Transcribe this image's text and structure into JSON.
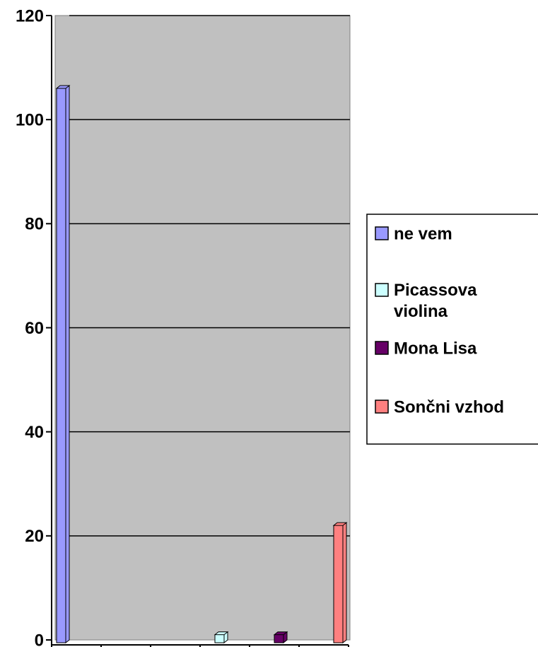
{
  "chart_data": {
    "type": "bar3d",
    "categories": [
      null,
      null,
      null,
      null,
      null,
      null
    ],
    "series": [
      {
        "name": "ne vem",
        "color": "#9999ff",
        "values": [
          106,
          0,
          0,
          0,
          0,
          0
        ]
      },
      {
        "name": "Picassova violina",
        "color": "#ccffff",
        "values": [
          0,
          0,
          0,
          1,
          0,
          0
        ]
      },
      {
        "name": "Mona Lisa",
        "color": "#660066",
        "values": [
          0,
          0,
          0,
          0,
          1,
          0
        ]
      },
      {
        "name": "Sončni vzhod",
        "color": "#ff8080",
        "values": [
          0,
          0,
          0,
          0,
          0,
          22
        ]
      }
    ],
    "ylim": [
      0,
      120
    ],
    "yticks": [
      0,
      20,
      40,
      60,
      80,
      100,
      120
    ],
    "grid": true,
    "legend": "right"
  }
}
